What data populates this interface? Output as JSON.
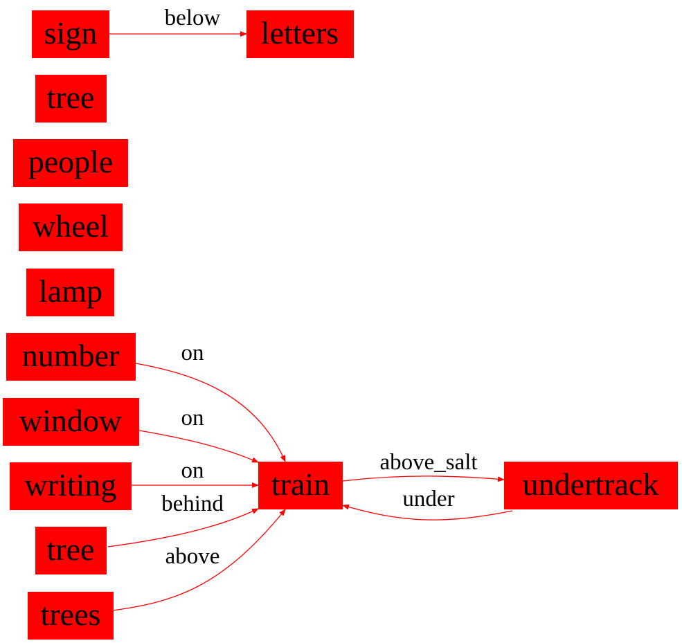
{
  "colors": {
    "node_fill": "#ff0000",
    "edge": "#ff0000",
    "text": "#000000",
    "background": "#ffffff"
  },
  "nodes": {
    "sign": "sign",
    "letters": "letters",
    "tree1": "tree",
    "people": "people",
    "wheel": "wheel",
    "lamp": "lamp",
    "number": "number",
    "window": "window",
    "writing": "writing",
    "tree2": "tree",
    "trees": "trees",
    "train": "train",
    "undertrack": "undertrack"
  },
  "edges": {
    "sign_letters": "below",
    "number_train": "on",
    "window_train": "on",
    "writing_train": "on",
    "tree_train": "behind",
    "trees_train": "above",
    "train_undertrack": "above_salt",
    "undertrack_train": "under"
  }
}
